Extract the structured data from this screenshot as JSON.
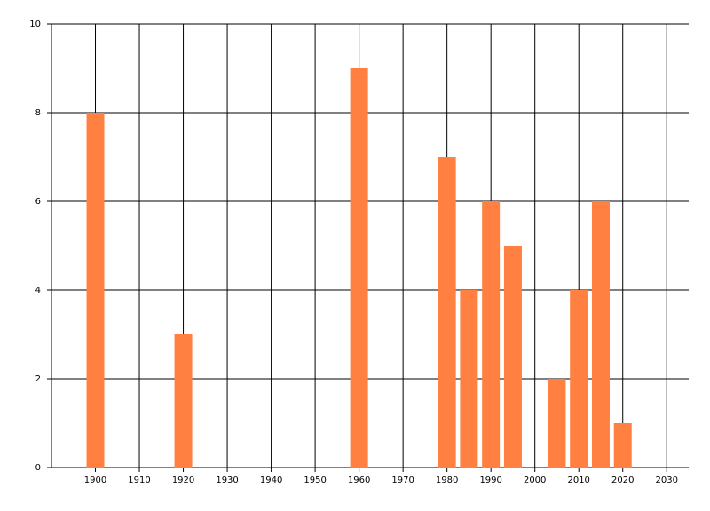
{
  "chart_data": {
    "type": "bar",
    "x": [
      1900,
      1920,
      1960,
      1980,
      1985,
      1990,
      1995,
      2005,
      2010,
      2015,
      2020
    ],
    "values": [
      8,
      3,
      9,
      7,
      4,
      6,
      5,
      2,
      4,
      6,
      1
    ],
    "color": "#ff8040",
    "xlim": [
      1890,
      2035
    ],
    "xticks": [
      1900,
      1910,
      1920,
      1930,
      1940,
      1950,
      1960,
      1970,
      1980,
      1990,
      2000,
      2010,
      2020,
      2030
    ],
    "ylim": [
      0,
      10
    ],
    "yticks": [
      0,
      2,
      4,
      6,
      8,
      10
    ],
    "grid": true
  }
}
